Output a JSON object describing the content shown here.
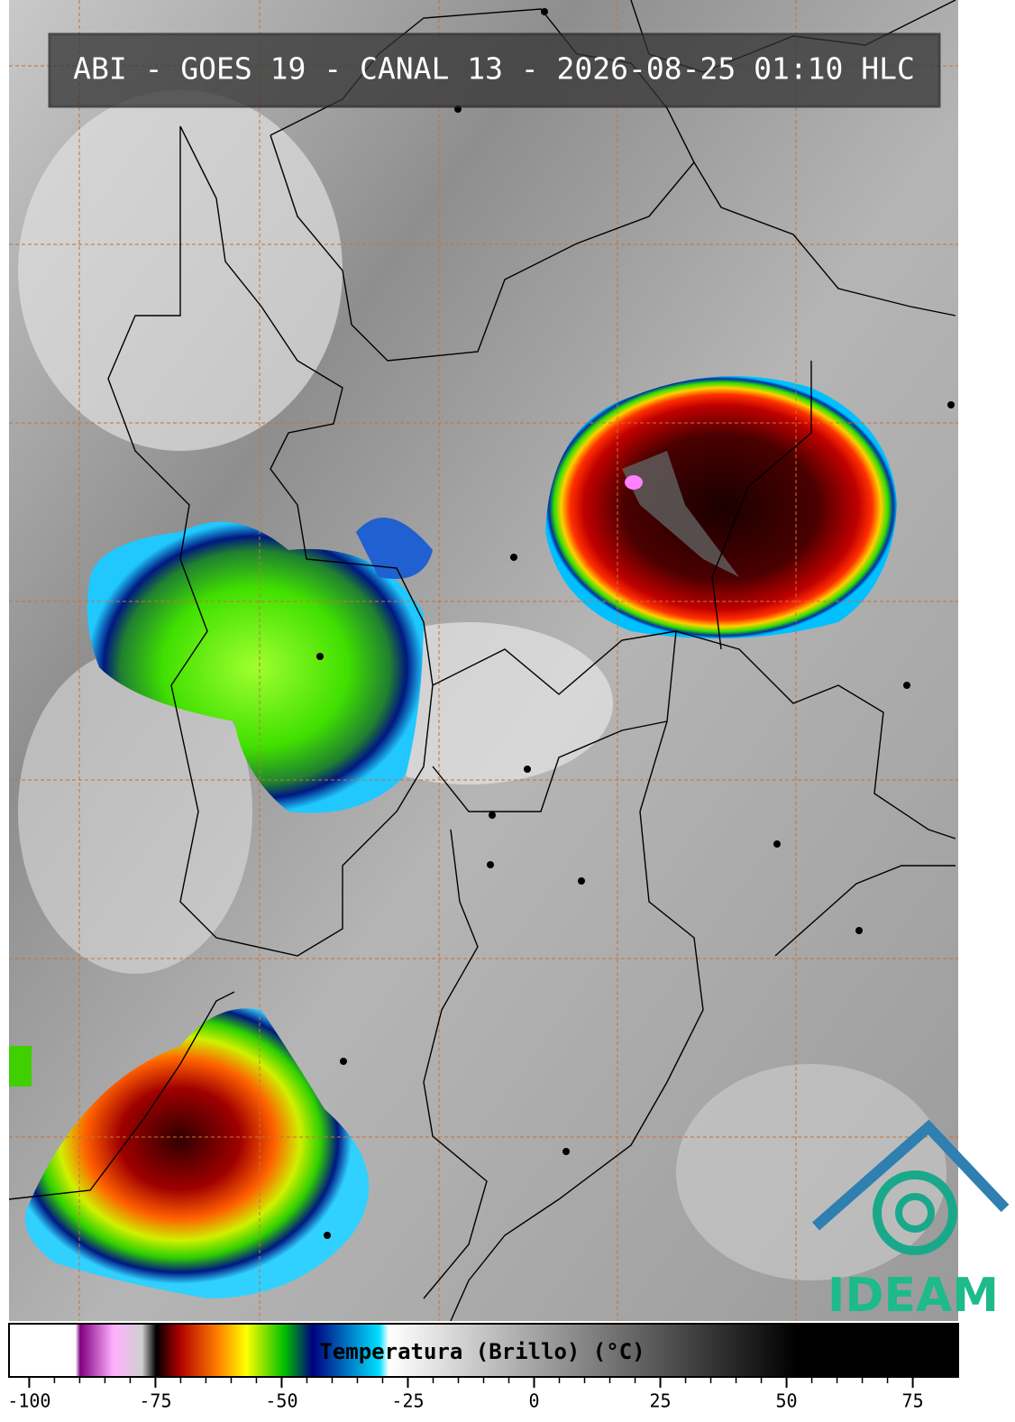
{
  "header": {
    "title": "ABI - GOES 19 - CANAL 13 - 2026-08-25 01:10 HLC"
  },
  "colorbar": {
    "label": "Temperatura (Brillo) (°C)",
    "xlim": [
      -104,
      84
    ],
    "ticks": [
      -100,
      -75,
      -50,
      -25,
      0,
      25,
      50,
      75
    ]
  },
  "logo": {
    "text": "IDEAM"
  }
}
